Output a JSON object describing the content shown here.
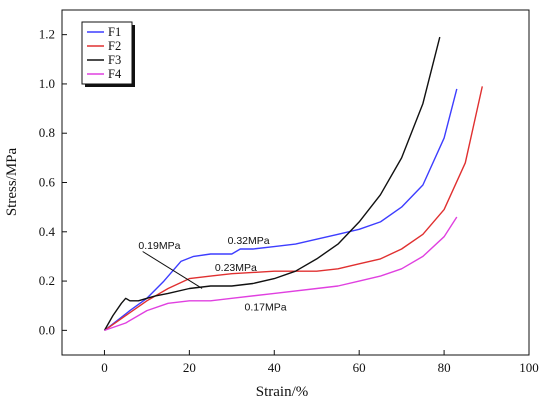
{
  "chart_data": {
    "type": "line",
    "xlabel": "Strain/%",
    "ylabel": "Stress/MPa",
    "xlim": [
      -10,
      100
    ],
    "ylim": [
      -0.1,
      1.3
    ],
    "xticks": [
      0,
      20,
      40,
      60,
      80,
      100
    ],
    "yticks": [
      0.0,
      0.2,
      0.4,
      0.6,
      0.8,
      1.0,
      1.2
    ],
    "xtick_labels": [
      "0",
      "20",
      "40",
      "60",
      "80",
      "100"
    ],
    "ytick_labels": [
      "0.0",
      "0.2",
      "0.4",
      "0.6",
      "0.8",
      "1.0",
      "1.2"
    ],
    "legend_position": "top-left",
    "series": [
      {
        "name": "F1",
        "color": "#3d3dff",
        "x": [
          0,
          3,
          6,
          10,
          14,
          18,
          21,
          25,
          30,
          32,
          35,
          40,
          45,
          50,
          55,
          60,
          65,
          70,
          75,
          80,
          83
        ],
        "y": [
          0,
          0.04,
          0.08,
          0.13,
          0.2,
          0.28,
          0.3,
          0.31,
          0.31,
          0.33,
          0.33,
          0.34,
          0.35,
          0.37,
          0.39,
          0.41,
          0.44,
          0.5,
          0.59,
          0.78,
          0.98
        ]
      },
      {
        "name": "F2",
        "color": "#e03030",
        "x": [
          0,
          5,
          10,
          15,
          20,
          25,
          30,
          40,
          50,
          55,
          60,
          65,
          70,
          75,
          80,
          85,
          89
        ],
        "y": [
          0,
          0.06,
          0.12,
          0.17,
          0.21,
          0.22,
          0.23,
          0.24,
          0.24,
          0.25,
          0.27,
          0.29,
          0.33,
          0.39,
          0.49,
          0.68,
          0.99
        ]
      },
      {
        "name": "F3",
        "color": "#111111",
        "x": [
          0,
          2,
          4,
          5,
          6,
          8,
          10,
          12,
          15,
          20,
          25,
          30,
          35,
          40,
          45,
          50,
          55,
          60,
          65,
          70,
          75,
          79
        ],
        "y": [
          0,
          0.06,
          0.11,
          0.13,
          0.12,
          0.12,
          0.13,
          0.14,
          0.15,
          0.17,
          0.18,
          0.18,
          0.19,
          0.21,
          0.24,
          0.29,
          0.35,
          0.44,
          0.55,
          0.7,
          0.92,
          1.19
        ]
      },
      {
        "name": "F4",
        "color": "#e040e0",
        "x": [
          0,
          5,
          10,
          15,
          20,
          25,
          30,
          40,
          50,
          55,
          60,
          65,
          70,
          75,
          80,
          83
        ],
        "y": [
          0,
          0.03,
          0.08,
          0.11,
          0.12,
          0.12,
          0.13,
          0.15,
          0.17,
          0.18,
          0.2,
          0.22,
          0.25,
          0.3,
          0.38,
          0.46
        ]
      }
    ],
    "annotations": [
      {
        "text": "0.19MPa",
        "x": 8,
        "y": 0.33
      },
      {
        "text": "0.32MPa",
        "x": 29,
        "y": 0.35
      },
      {
        "text": "0.23MPa",
        "x": 26,
        "y": 0.24
      },
      {
        "text": "0.17MPa",
        "x": 33,
        "y": 0.08
      }
    ],
    "leaders": [
      {
        "x1": 9,
        "y1": 0.32,
        "x2": 23,
        "y2": 0.17
      }
    ]
  }
}
